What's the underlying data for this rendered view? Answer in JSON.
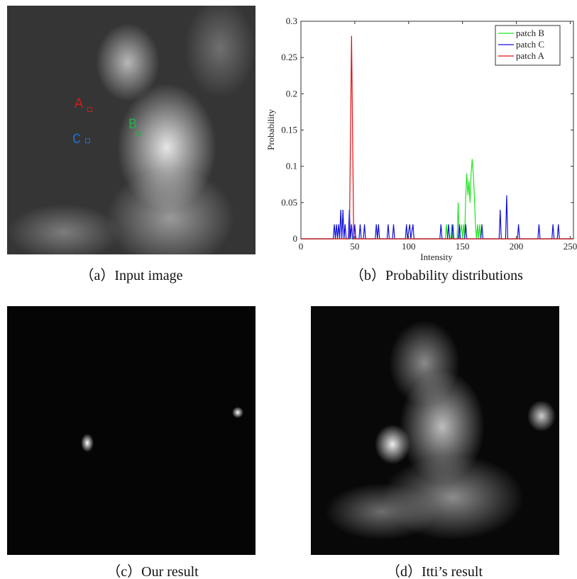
{
  "figure": {
    "captions": [
      "（a）Input image",
      "（b）Probability distributions",
      "（c）Our result",
      "（d）Itti’s result"
    ],
    "image_labels": [
      {
        "text": "A"
      },
      {
        "text": "B"
      },
      {
        "text": "C"
      }
    ]
  },
  "chart_data": {
    "type": "line",
    "x_label": "Intensity",
    "y_label": "Probability",
    "xlim": [
      0,
      253
    ],
    "ylim": [
      0,
      0.3
    ],
    "xticks": [
      0,
      50,
      100,
      150,
      200,
      250
    ],
    "yticks": [
      0,
      0.05,
      0.1,
      0.15,
      0.2,
      0.25,
      0.3
    ],
    "legend": "upper right",
    "series": [
      {
        "name": "patch B",
        "color": "#1ee61e",
        "x": [
          0,
          134,
          135,
          136,
          139,
          140,
          141,
          145,
          146,
          147,
          149,
          150,
          151,
          152,
          153,
          154,
          155,
          156,
          157,
          158,
          159,
          160,
          161,
          162,
          163,
          164,
          165,
          166,
          167,
          253
        ],
        "values": [
          0,
          0,
          0.02,
          0,
          0,
          0.02,
          0,
          0,
          0.05,
          0,
          0.02,
          0,
          0.02,
          0,
          0.06,
          0.09,
          0.06,
          0.08,
          0.05,
          0.09,
          0.11,
          0.09,
          0.06,
          0.02,
          0,
          0.02,
          0,
          0.02,
          0,
          0
        ]
      },
      {
        "name": "patch C",
        "color": "#1010d8",
        "x": [
          0,
          30,
          31,
          32,
          33,
          34,
          35,
          36,
          37,
          38,
          39,
          40,
          41,
          42,
          44,
          45,
          46,
          47,
          48,
          49,
          50,
          51,
          54,
          55,
          56,
          58,
          59,
          60,
          69,
          70,
          71,
          72,
          73,
          80,
          81,
          82,
          85,
          86,
          87,
          97,
          98,
          99,
          101,
          102,
          104,
          105,
          129,
          130,
          131,
          136,
          137,
          138,
          140,
          141,
          142,
          146,
          147,
          148,
          152,
          153,
          154,
          167,
          168,
          169,
          184,
          185,
          186,
          190,
          191,
          192,
          201,
          202,
          203,
          220,
          221,
          222,
          233,
          234,
          235,
          238,
          239,
          240,
          253
        ],
        "values": [
          0,
          0,
          0.02,
          0,
          0.02,
          0,
          0.02,
          0,
          0.04,
          0,
          0.04,
          0,
          0.02,
          0,
          0,
          0.04,
          0,
          0.02,
          0,
          0,
          0.02,
          0,
          0,
          0.02,
          0,
          0,
          0.02,
          0,
          0,
          0.02,
          0,
          0.02,
          0,
          0,
          0.02,
          0,
          0,
          0.02,
          0,
          0,
          0.02,
          0,
          0.02,
          0,
          0.02,
          0,
          0,
          0.02,
          0,
          0,
          0.02,
          0,
          0,
          0.02,
          0,
          0,
          0.02,
          0,
          0,
          0.02,
          0,
          0,
          0.02,
          0,
          0,
          0.04,
          0,
          0,
          0.06,
          0,
          0,
          0.02,
          0,
          0,
          0.02,
          0,
          0,
          0.02,
          0,
          0,
          0.02,
          0,
          0
        ]
      },
      {
        "name": "patch A",
        "color": "#e01010",
        "x": [
          0,
          45,
          47,
          49,
          253
        ],
        "values": [
          0,
          0,
          0.28,
          0,
          0
        ]
      }
    ]
  }
}
